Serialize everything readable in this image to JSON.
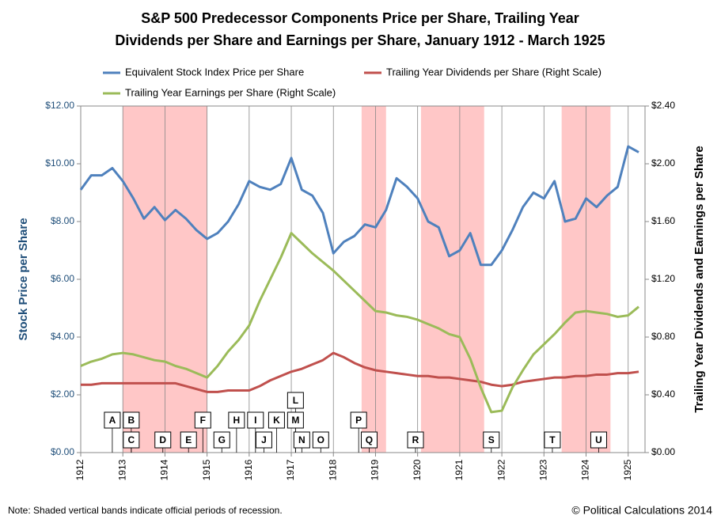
{
  "chart_data": {
    "type": "line",
    "title": [
      "S&P 500 Predecessor Components Price per Share, Trailing Year",
      "Dividends per Share and Earnings per Share, January 1912 - March 1925"
    ],
    "y_label": "Stock Price per Share",
    "y2_label": "Trailing Year Dividends and Earnings per Share",
    "note": "Note: Shaded vertical bands indicate official periods of recession.",
    "credit": "© Political Calculations 2014",
    "xlim": [
      1912,
      1925.4
    ],
    "xticks": [
      1912,
      1913,
      1914,
      1915,
      1916,
      1917,
      1918,
      1919,
      1920,
      1921,
      1922,
      1923,
      1924,
      1925
    ],
    "ylim": [
      0,
      12
    ],
    "yticks": [
      {
        "value": 0,
        "label": "$0.00"
      },
      {
        "value": 2,
        "label": "$2.00"
      },
      {
        "value": 4,
        "label": "$4.00"
      },
      {
        "value": 6,
        "label": "$6.00"
      },
      {
        "value": 8,
        "label": "$8.00"
      },
      {
        "value": 10,
        "label": "$10.00"
      },
      {
        "value": 12,
        "label": "$12.00"
      }
    ],
    "y2lim": [
      0,
      2.4
    ],
    "y2ticks": [
      {
        "value": 0,
        "label": "$0.00"
      },
      {
        "value": 0.4,
        "label": "$0.40"
      },
      {
        "value": 0.8,
        "label": "$0.80"
      },
      {
        "value": 1.2,
        "label": "$1.20"
      },
      {
        "value": 1.6,
        "label": "$1.60"
      },
      {
        "value": 2,
        "label": "$2.00"
      },
      {
        "value": 2.4,
        "label": "$2.40"
      }
    ],
    "grid": "vertical",
    "recession_color": "#ffc7c7",
    "recessions": [
      [
        1913,
        1915
      ],
      [
        1918.67,
        1919.25
      ],
      [
        1920.08,
        1921.58
      ],
      [
        1923.42,
        1924.58
      ]
    ],
    "x": [
      1912,
      1912.25,
      1912.5,
      1912.75,
      1913,
      1913.25,
      1913.5,
      1913.75,
      1914,
      1914.25,
      1914.5,
      1914.75,
      1915,
      1915.25,
      1915.5,
      1915.75,
      1916,
      1916.25,
      1916.5,
      1916.75,
      1917,
      1917.25,
      1917.5,
      1917.75,
      1918,
      1918.25,
      1918.5,
      1918.75,
      1919,
      1919.25,
      1919.5,
      1919.75,
      1920,
      1920.25,
      1920.5,
      1920.75,
      1921,
      1921.25,
      1921.5,
      1921.75,
      1922,
      1922.25,
      1922.5,
      1922.75,
      1923,
      1923.25,
      1923.5,
      1923.75,
      1924,
      1924.25,
      1924.5,
      1924.75,
      1925,
      1925.25
    ],
    "series": [
      {
        "name": "Equivalent Stock Index Price per Share",
        "color": "#4f81bd",
        "values": [
          9.1,
          9.6,
          9.6,
          9.85,
          9.4,
          8.8,
          8.1,
          8.5,
          8.05,
          8.4,
          8.1,
          7.7,
          7.4,
          7.6,
          8.0,
          8.6,
          9.4,
          9.2,
          9.1,
          9.3,
          10.2,
          9.1,
          8.9,
          8.3,
          6.9,
          7.3,
          7.5,
          7.9,
          7.8,
          8.4,
          9.5,
          9.2,
          8.8,
          8.0,
          7.8,
          6.8,
          7.0,
          7.6,
          6.5,
          6.5,
          7.0,
          7.7,
          8.5,
          9.0,
          8.8,
          9.4,
          8.0,
          8.1,
          8.8,
          8.5,
          8.9,
          9.2,
          10.6,
          10.4
        ]
      },
      {
        "name": "Trailing Year Dividends per Share (Right Scale)",
        "color": "#c0504d",
        "axis": "y2",
        "values": [
          0.47,
          0.47,
          0.48,
          0.48,
          0.48,
          0.48,
          0.48,
          0.48,
          0.48,
          0.48,
          0.46,
          0.44,
          0.42,
          0.42,
          0.43,
          0.43,
          0.43,
          0.46,
          0.5,
          0.53,
          0.56,
          0.58,
          0.61,
          0.64,
          0.69,
          0.66,
          0.62,
          0.59,
          0.57,
          0.56,
          0.55,
          0.54,
          0.53,
          0.53,
          0.52,
          0.52,
          0.51,
          0.5,
          0.49,
          0.47,
          0.46,
          0.47,
          0.49,
          0.5,
          0.51,
          0.52,
          0.52,
          0.53,
          0.53,
          0.54,
          0.54,
          0.55,
          0.55,
          0.56
        ]
      },
      {
        "name": "Trailing Year Earnings per Share (Right Scale)",
        "color": "#9bbb59",
        "axis": "y2",
        "values": [
          0.6,
          0.63,
          0.65,
          0.68,
          0.69,
          0.68,
          0.66,
          0.64,
          0.63,
          0.6,
          0.58,
          0.55,
          0.52,
          0.6,
          0.7,
          0.78,
          0.88,
          1.05,
          1.2,
          1.35,
          1.52,
          1.45,
          1.38,
          1.32,
          1.26,
          1.19,
          1.12,
          1.05,
          0.98,
          0.97,
          0.95,
          0.94,
          0.92,
          0.89,
          0.86,
          0.82,
          0.8,
          0.65,
          0.45,
          0.28,
          0.29,
          0.45,
          0.57,
          0.68,
          0.75,
          0.82,
          0.9,
          0.97,
          0.98,
          0.97,
          0.96,
          0.94,
          0.95,
          1.01
        ]
      }
    ],
    "events": [
      {
        "label": "A",
        "x": 1912.75
      },
      {
        "label": "B",
        "x": 1913.2
      },
      {
        "label": "C",
        "x": 1913.2
      },
      {
        "label": "D",
        "x": 1913.95
      },
      {
        "label": "E",
        "x": 1914.56
      },
      {
        "label": "F",
        "x": 1914.9
      },
      {
        "label": "G",
        "x": 1915.35
      },
      {
        "label": "H",
        "x": 1915.7
      },
      {
        "label": "I",
        "x": 1916.15
      },
      {
        "label": "J",
        "x": 1916.35
      },
      {
        "label": "K",
        "x": 1916.65
      },
      {
        "label": "L",
        "x": 1917.1
      },
      {
        "label": "M",
        "x": 1917.1
      },
      {
        "label": "N",
        "x": 1917.25
      },
      {
        "label": "O",
        "x": 1917.7
      },
      {
        "label": "P",
        "x": 1918.6
      },
      {
        "label": "Q",
        "x": 1918.85
      },
      {
        "label": "R",
        "x": 1919.95
      },
      {
        "label": "S",
        "x": 1921.75
      },
      {
        "label": "T",
        "x": 1923.2
      },
      {
        "label": "U",
        "x": 1924.3
      }
    ]
  }
}
